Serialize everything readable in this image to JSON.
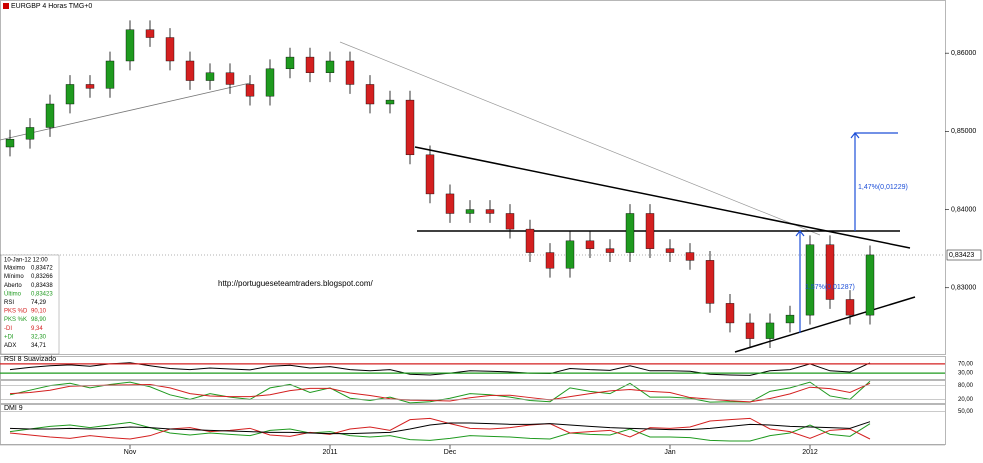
{
  "chart_data": [
    {
      "type": "candlestick",
      "title": "EURGBP 4 Horas TMG+0",
      "categories": [
        null,
        null,
        null,
        null,
        null,
        null,
        "Nov",
        null,
        null,
        null,
        null,
        null,
        null,
        null,
        null,
        null,
        "2011",
        null,
        null,
        null,
        null,
        null,
        "Dec",
        null,
        null,
        null,
        null,
        null,
        null,
        null,
        null,
        null,
        null,
        "Jan",
        null,
        null,
        null,
        null,
        null,
        null,
        "2012",
        null,
        null,
        null
      ],
      "open": [
        0.848,
        0.849,
        0.8505,
        0.8535,
        0.856,
        0.8555,
        0.859,
        0.863,
        0.862,
        0.859,
        0.8565,
        0.8575,
        0.856,
        0.8545,
        0.858,
        0.8595,
        0.8575,
        0.859,
        0.856,
        0.8535,
        0.854,
        0.847,
        0.842,
        0.8395,
        0.84,
        0.8395,
        0.8375,
        0.8345,
        0.8325,
        0.836,
        0.835,
        0.8345,
        0.8395,
        0.835,
        0.8345,
        0.8335,
        0.828,
        0.8255,
        0.8235,
        0.8255,
        0.8265,
        0.8355,
        0.8285,
        0.8265
      ],
      "high": [
        0.8502,
        0.8517,
        0.8547,
        0.8572,
        0.8572,
        0.8602,
        0.8642,
        0.8642,
        0.8632,
        0.8602,
        0.8587,
        0.8587,
        0.8572,
        0.8592,
        0.8607,
        0.8607,
        0.8602,
        0.8602,
        0.8572,
        0.8552,
        0.8552,
        0.8482,
        0.8432,
        0.8412,
        0.8412,
        0.8407,
        0.8387,
        0.8357,
        0.8372,
        0.8372,
        0.8362,
        0.8407,
        0.8407,
        0.8362,
        0.8357,
        0.8347,
        0.8292,
        0.8267,
        0.8267,
        0.8277,
        0.8367,
        0.8367,
        0.8297,
        0.8354
      ],
      "low": [
        0.8468,
        0.8478,
        0.8493,
        0.8523,
        0.8543,
        0.8543,
        0.8578,
        0.8608,
        0.8578,
        0.8553,
        0.8553,
        0.8548,
        0.8533,
        0.8533,
        0.8568,
        0.8563,
        0.8563,
        0.8548,
        0.8523,
        0.8523,
        0.8458,
        0.8408,
        0.8383,
        0.8383,
        0.8383,
        0.8363,
        0.8333,
        0.8313,
        0.8313,
        0.8338,
        0.8333,
        0.8333,
        0.8338,
        0.8333,
        0.8323,
        0.8268,
        0.8243,
        0.8223,
        0.8223,
        0.8243,
        0.8253,
        0.8273,
        0.8253,
        0.8253
      ],
      "close": [
        0.849,
        0.8505,
        0.8535,
        0.856,
        0.8555,
        0.859,
        0.863,
        0.862,
        0.859,
        0.8565,
        0.8575,
        0.856,
        0.8545,
        0.858,
        0.8595,
        0.8575,
        0.859,
        0.856,
        0.8535,
        0.854,
        0.847,
        0.842,
        0.8395,
        0.84,
        0.8395,
        0.8375,
        0.8345,
        0.8325,
        0.836,
        0.835,
        0.8345,
        0.8395,
        0.835,
        0.8345,
        0.8335,
        0.828,
        0.8255,
        0.8235,
        0.8255,
        0.8265,
        0.8355,
        0.8285,
        0.8265,
        0.8342
      ],
      "up_color": "#1f9a1f",
      "down_color": "#d42020",
      "ylim": [
        0.8214,
        0.8668
      ],
      "yticks": [
        {
          "value": 0.83,
          "label": "0,83000"
        },
        {
          "value": 0.84,
          "label": "0,84000"
        },
        {
          "value": 0.85,
          "label": "0,85000"
        },
        {
          "value": 0.86,
          "label": "0,86000"
        }
      ],
      "last_price": {
        "value": 0.83423,
        "label": "0,83423"
      },
      "annotations": [
        "1,47%(0,01229)",
        "1,57%(0,01287)",
        "http://portugueseteamtraders.blogspot.com/"
      ],
      "info_box": {
        "date": "10-Jan-12 12:00",
        "rows": [
          {
            "label": "Máximo",
            "value": "0,83472",
            "color": "#000"
          },
          {
            "label": "Mínimo",
            "value": "0,83266",
            "color": "#000"
          },
          {
            "label": "Aberto",
            "value": "0,83438",
            "color": "#000"
          },
          {
            "label": "Último",
            "value": "0,83423",
            "color": "#1f9a1f"
          },
          {
            "label": "RSI",
            "value": "74,29",
            "color": "#000"
          },
          {
            "label": "PKS %D",
            "value": "90,10",
            "color": "#d42020"
          },
          {
            "label": "PKS %K",
            "value": "98,90",
            "color": "#1f9a1f"
          },
          {
            "label": "-DI",
            "value": "9,34",
            "color": "#d42020"
          },
          {
            "label": "+DI",
            "value": "32,30",
            "color": "#1f9a1f"
          },
          {
            "label": "ADX",
            "value": "34,71",
            "color": "#000"
          }
        ]
      }
    },
    {
      "type": "line",
      "title": "RSI 8 Suavizado",
      "ylim": [
        0,
        100
      ],
      "yticks": [
        {
          "value": 70,
          "label": "70,00"
        },
        {
          "value": 30,
          "label": "30,00"
        }
      ],
      "series": [
        {
          "color": "#000",
          "values": [
            45,
            55,
            62,
            66,
            60,
            70,
            75,
            62,
            50,
            45,
            52,
            48,
            44,
            60,
            64,
            52,
            58,
            45,
            40,
            45,
            25,
            22,
            30,
            40,
            38,
            35,
            30,
            28,
            50,
            45,
            42,
            62,
            40,
            40,
            38,
            25,
            22,
            20,
            40,
            45,
            70,
            40,
            35,
            74
          ]
        }
      ]
    },
    {
      "type": "line",
      "ylim": [
        0,
        100
      ],
      "yticks": [
        {
          "value": 80,
          "label": "80,00"
        },
        {
          "value": 20,
          "label": "20,00"
        }
      ],
      "series": [
        {
          "color": "#1f9a1f",
          "values": [
            40,
            60,
            80,
            90,
            70,
            85,
            95,
            75,
            40,
            20,
            45,
            30,
            20,
            70,
            85,
            50,
            70,
            25,
            15,
            30,
            5,
            10,
            25,
            45,
            40,
            30,
            15,
            10,
            70,
            55,
            45,
            90,
            30,
            30,
            25,
            8,
            10,
            8,
            55,
            70,
            95,
            35,
            20,
            99
          ]
        },
        {
          "color": "#d42020",
          "values": [
            45,
            50,
            60,
            77,
            80,
            82,
            83,
            85,
            70,
            45,
            35,
            32,
            32,
            40,
            58,
            68,
            68,
            48,
            37,
            23,
            17,
            15,
            13,
            27,
            37,
            38,
            28,
            18,
            32,
            45,
            57,
            63,
            55,
            50,
            28,
            21,
            14,
            9,
            24,
            44,
            73,
            67,
            50,
            90
          ]
        }
      ]
    },
    {
      "type": "line",
      "title": "DMI 9",
      "ylim": [
        0,
        60
      ],
      "yticks": [
        {
          "value": 50,
          "label": "50,00"
        }
      ],
      "series": [
        {
          "color": "#1f9a1f",
          "values": [
            20,
            24,
            28,
            30,
            26,
            30,
            34,
            26,
            18,
            15,
            18,
            16,
            14,
            22,
            24,
            18,
            20,
            14,
            12,
            14,
            8,
            7,
            10,
            14,
            13,
            12,
            10,
            9,
            18,
            16,
            15,
            24,
            12,
            12,
            11,
            7,
            6,
            6,
            14,
            18,
            30,
            16,
            13,
            32
          ]
        },
        {
          "color": "#d42020",
          "values": [
            18,
            15,
            12,
            10,
            14,
            11,
            9,
            14,
            24,
            26,
            20,
            22,
            25,
            15,
            13,
            19,
            16,
            24,
            27,
            22,
            38,
            40,
            32,
            25,
            24,
            26,
            30,
            32,
            18,
            20,
            22,
            12,
            26,
            25,
            27,
            36,
            38,
            40,
            24,
            20,
            10,
            22,
            24,
            9
          ]
        },
        {
          "color": "#000",
          "values": [
            25,
            24,
            24,
            25,
            24,
            25,
            27,
            26,
            24,
            23,
            22,
            21,
            20,
            19,
            19,
            18,
            17,
            17,
            18,
            19,
            24,
            30,
            33,
            33,
            32,
            31,
            31,
            32,
            30,
            28,
            26,
            25,
            24,
            23,
            23,
            25,
            28,
            31,
            30,
            28,
            27,
            26,
            25,
            35
          ]
        }
      ]
    }
  ]
}
